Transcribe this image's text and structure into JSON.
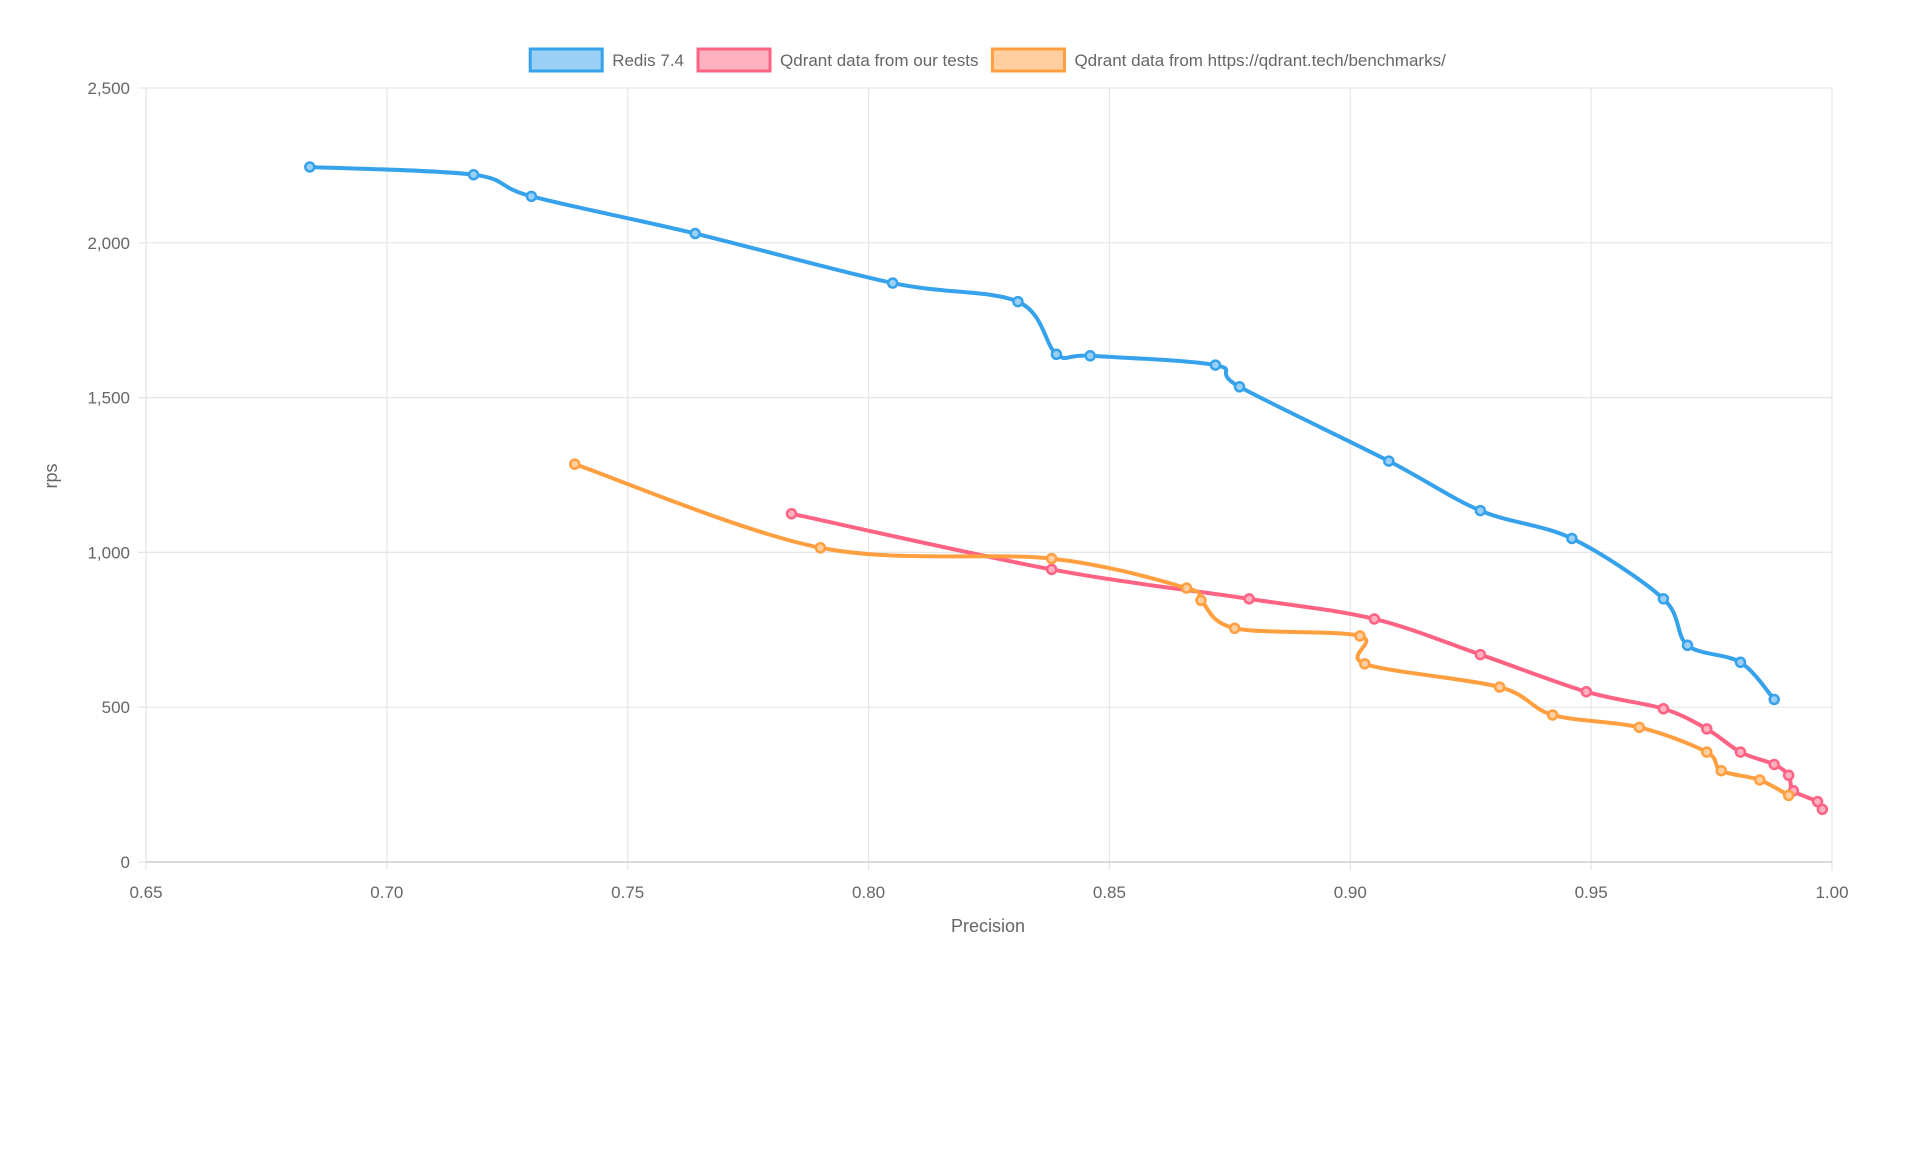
{
  "chart_data": {
    "type": "line",
    "title": "",
    "xlabel": "Precision",
    "ylabel": "rps",
    "xlim": [
      0.65,
      1.0
    ],
    "ylim": [
      0,
      2500
    ],
    "x_ticks": [
      "0.65",
      "0.70",
      "0.75",
      "0.80",
      "0.85",
      "0.90",
      "0.95",
      "1.00"
    ],
    "y_ticks": [
      "0",
      "500",
      "1,000",
      "1,500",
      "2,000",
      "2,500"
    ],
    "grid": true,
    "legend_position": "top",
    "series": [
      {
        "name": "Redis 7.4",
        "color": "#36a2eb",
        "fill": "#9ad0f5",
        "points": [
          [
            0.684,
            2245
          ],
          [
            0.718,
            2220
          ],
          [
            0.73,
            2150
          ],
          [
            0.764,
            2030
          ],
          [
            0.805,
            1870
          ],
          [
            0.831,
            1810
          ],
          [
            0.839,
            1640
          ],
          [
            0.846,
            1635
          ],
          [
            0.872,
            1605
          ],
          [
            0.877,
            1535
          ],
          [
            0.908,
            1295
          ],
          [
            0.927,
            1135
          ],
          [
            0.946,
            1045
          ],
          [
            0.965,
            850
          ],
          [
            0.97,
            700
          ],
          [
            0.981,
            645
          ],
          [
            0.988,
            525
          ]
        ]
      },
      {
        "name": "Qdrant data from our tests",
        "color": "#ff6384",
        "fill": "#ffb1c1",
        "points": [
          [
            0.784,
            1125
          ],
          [
            0.838,
            945
          ],
          [
            0.879,
            850
          ],
          [
            0.905,
            785
          ],
          [
            0.927,
            670
          ],
          [
            0.949,
            550
          ],
          [
            0.965,
            495
          ],
          [
            0.974,
            430
          ],
          [
            0.981,
            355
          ],
          [
            0.988,
            315
          ],
          [
            0.991,
            280
          ],
          [
            0.992,
            230
          ],
          [
            0.997,
            195
          ],
          [
            0.998,
            170
          ]
        ]
      },
      {
        "name": "Qdrant data from https://qdrant.tech/benchmarks/",
        "color": "#ff9f40",
        "fill": "#ffcf9f",
        "points": [
          [
            0.739,
            1285
          ],
          [
            0.79,
            1015
          ],
          [
            0.838,
            980
          ],
          [
            0.866,
            885
          ],
          [
            0.869,
            845
          ],
          [
            0.876,
            755
          ],
          [
            0.902,
            730
          ],
          [
            0.903,
            640
          ],
          [
            0.931,
            565
          ],
          [
            0.942,
            475
          ],
          [
            0.96,
            435
          ],
          [
            0.974,
            355
          ],
          [
            0.977,
            295
          ],
          [
            0.985,
            265
          ],
          [
            0.991,
            215
          ]
        ]
      }
    ]
  }
}
